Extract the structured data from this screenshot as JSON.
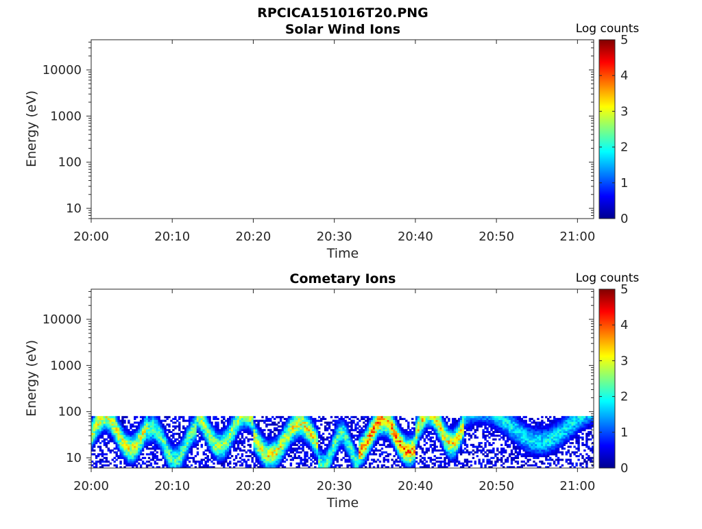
{
  "figure_title": "RPCICA151016T20.PNG",
  "chart_data": [
    {
      "type": "heatmap",
      "title": "Solar Wind Ions",
      "xlabel": "Time",
      "ylabel": "Energy (eV)",
      "x_ticks": [
        "20:00",
        "20:10",
        "20:20",
        "20:30",
        "20:40",
        "20:50",
        "21:00"
      ],
      "x_range": [
        "20:00",
        "21:02"
      ],
      "y_scale": "log",
      "y_ticks": [
        "10",
        "100",
        "1000",
        "10000"
      ],
      "y_range": [
        6,
        45000
      ],
      "colorbar": {
        "label": "Log counts",
        "range": [
          0,
          5
        ],
        "ticks": [
          "0",
          "1",
          "2",
          "3",
          "4",
          "5"
        ],
        "colormap": "jet"
      },
      "data_present": false,
      "bands": []
    },
    {
      "type": "heatmap",
      "title": "Cometary Ions",
      "xlabel": "Time",
      "ylabel": "Energy (eV)",
      "x_ticks": [
        "20:00",
        "20:10",
        "20:20",
        "20:30",
        "20:40",
        "20:50",
        "21:00"
      ],
      "x_range": [
        "20:00",
        "21:02"
      ],
      "y_scale": "log",
      "y_ticks": [
        "10",
        "100",
        "1000",
        "10000"
      ],
      "y_range": [
        6,
        45000
      ],
      "colorbar": {
        "label": "Log counts",
        "range": [
          0,
          5
        ],
        "ticks": [
          "0",
          "1",
          "2",
          "3",
          "4",
          "5"
        ],
        "colormap": "jet"
      },
      "data_present": true,
      "energy_upper_eV": 80,
      "bands": [
        {
          "t_start_min": 0,
          "t_end_min": 7,
          "peak_logcounts": 2.9,
          "peak_energy_eV": 35
        },
        {
          "t_start_min": 7,
          "t_end_min": 13,
          "peak_logcounts": 2.3,
          "peak_energy_eV": 20
        },
        {
          "t_start_min": 13,
          "t_end_min": 20,
          "peak_logcounts": 2.6,
          "peak_energy_eV": 40
        },
        {
          "t_start_min": 20,
          "t_end_min": 28,
          "peak_logcounts": 3.0,
          "peak_energy_eV": 25
        },
        {
          "t_start_min": 28,
          "t_end_min": 33,
          "peak_logcounts": 2.2,
          "peak_energy_eV": 15
        },
        {
          "t_start_min": 33,
          "t_end_min": 40,
          "peak_logcounts": 3.6,
          "peak_energy_eV": 30
        },
        {
          "t_start_min": 40,
          "t_end_min": 46,
          "peak_logcounts": 3.1,
          "peak_energy_eV": 45
        },
        {
          "t_start_min": 46,
          "t_end_min": 62,
          "peak_logcounts": 1.8,
          "peak_energy_eV": 50
        }
      ]
    }
  ]
}
